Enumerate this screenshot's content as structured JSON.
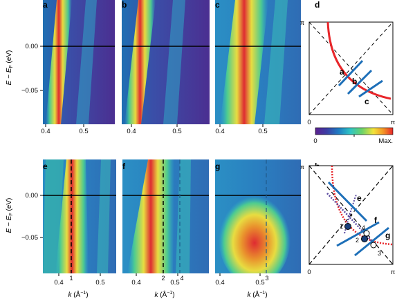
{
  "panels_top": [
    "a",
    "b",
    "c"
  ],
  "panels_bottom": [
    "e",
    "f",
    "g"
  ],
  "side_labels": {
    "top": "d",
    "bottom": "h"
  },
  "y_axis": {
    "label_top": "E − E",
    "label_sub": "F",
    "label_unit": " (eV)",
    "ticks": [
      "0.00",
      "−0.05"
    ]
  },
  "x_ticks_top": [
    [
      "0.4",
      "0.5"
    ],
    [
      "0.4",
      "0.5"
    ],
    [
      "0.4",
      "0.5"
    ]
  ],
  "x_ticks_bottom": [
    [
      "0.4",
      "0.5"
    ],
    [
      "0.4",
      "0.5"
    ],
    [
      "0.4",
      "0.5"
    ]
  ],
  "x_axis_label": {
    "k": "k",
    "unit": " (Å",
    "sup": "−1",
    "close": ")"
  },
  "marker_labels": {
    "e": [
      "1"
    ],
    "f": [
      "2",
      "4"
    ],
    "g": [
      "3"
    ]
  },
  "bz": {
    "pi": "π",
    "zero": "0",
    "cut_labels_d": [
      "a",
      "b",
      "c"
    ],
    "cut_labels_h": [
      "e",
      "f",
      "g"
    ],
    "point_labels_h": [
      "1",
      "2",
      "3",
      "4"
    ]
  },
  "colorbar": {
    "min": "0",
    "max": "Max."
  },
  "colors": {
    "fermi_surface": "#e8262a",
    "cut": "#1d6fb8"
  }
}
